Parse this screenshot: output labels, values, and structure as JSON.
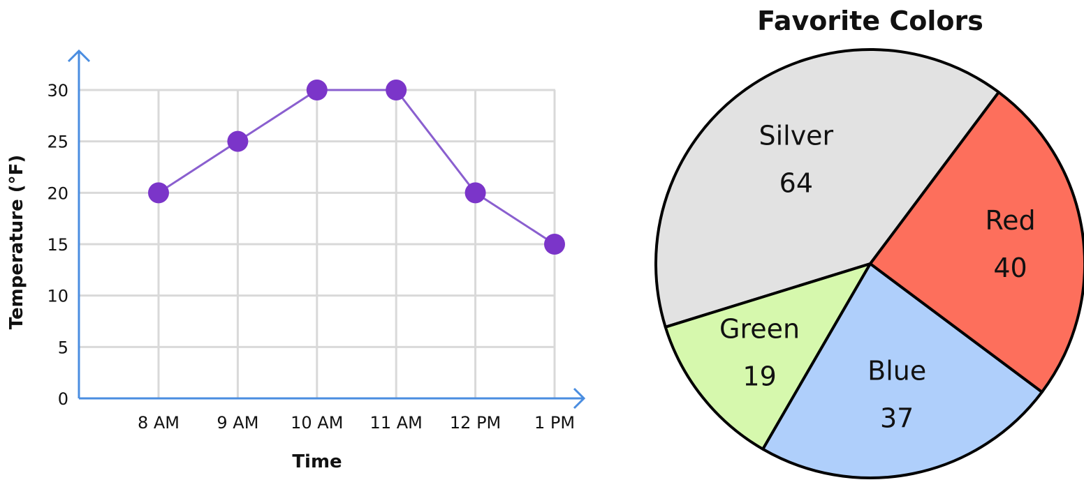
{
  "chart_data": [
    {
      "type": "line",
      "title": "",
      "xlabel": "Time",
      "ylabel": "Temperature (°F)",
      "categories": [
        "8 AM",
        "9 AM",
        "10 AM",
        "11 AM",
        "12 PM",
        "1 PM"
      ],
      "y_ticks": [
        "0",
        "5",
        "10",
        "15",
        "20",
        "25",
        "30"
      ],
      "ylim": [
        0,
        30
      ],
      "grid": true,
      "series": [
        {
          "values": [
            20,
            25,
            30,
            30,
            20,
            15
          ],
          "color": "#7b35c9",
          "line_color": "#8a5fcf"
        }
      ],
      "axis_color": "#4a8de0",
      "grid_color": "#d9d9d9"
    },
    {
      "type": "pie",
      "title": "Favorite Colors",
      "slices": [
        {
          "label": "Silver",
          "value": 64,
          "value_text": "64",
          "color": "#e2e2e2"
        },
        {
          "label": "Green",
          "value": 19,
          "value_text": "19",
          "color": "#d6f8ad"
        },
        {
          "label": "Blue",
          "value": 37,
          "value_text": "37",
          "color": "#afcffb"
        },
        {
          "label": "Red",
          "value": 40,
          "value_text": "40",
          "color": "#fd6f5c"
        }
      ]
    }
  ]
}
